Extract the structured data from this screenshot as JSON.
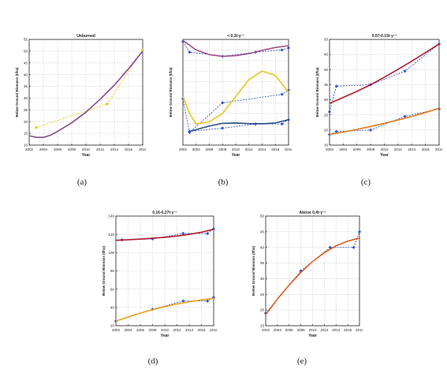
{
  "chart_data": [
    {
      "id": "a",
      "caption": "(a)",
      "type": "line",
      "title": "Unburned",
      "xlabel": "Year",
      "ylabel": "Below Ground Biomass (t/ha)",
      "xlim": [
        2002,
        2018
      ],
      "ylim": [
        10,
        55
      ],
      "xticks": [
        "2002",
        "2004",
        "2006",
        "2008",
        "2010",
        "2012",
        "2014",
        "2016",
        "2018"
      ],
      "yticks": [
        "10",
        "15",
        "20",
        "25",
        "30",
        "35",
        "40",
        "45",
        "50",
        "55"
      ],
      "grid": true,
      "series": [
        {
          "style": "dashed-markers",
          "color": "#e8c51f",
          "x": [
            2003,
            2013,
            2018
          ],
          "y": [
            17.5,
            27.5,
            50.5
          ]
        },
        {
          "style": "fit",
          "color": "#8a4a8a",
          "x": [
            2002,
            2003,
            2004,
            2005,
            2006,
            2008,
            2010,
            2012,
            2014,
            2016,
            2018
          ],
          "y": [
            14,
            13.3,
            13.3,
            14.2,
            15.8,
            19.5,
            24,
            29.5,
            35.5,
            42.5,
            50
          ]
        }
      ]
    },
    {
      "id": "b",
      "caption": "(b)",
      "type": "line",
      "title": "<-0.3t·y⁻¹",
      "xlabel": "Year",
      "ylabel": "Below Ground Biomass (t/ha)",
      "xlim": [
        2002,
        2018
      ],
      "ylim": [
        10,
        60
      ],
      "xticks": [
        "2002",
        "2004",
        "2006",
        "2008",
        "2010",
        "2012",
        "2014",
        "2016",
        "2018"
      ],
      "yticks": [],
      "grid": true,
      "series": [
        {
          "style": "dashed-markers",
          "color": "#3a56c8",
          "x": [
            2002,
            2003,
            2008,
            2013,
            2017,
            2018
          ],
          "y": [
            59,
            54,
            52,
            54,
            55,
            56
          ]
        },
        {
          "style": "fit",
          "color": "#a0508a",
          "x": [
            2002,
            2004,
            2006,
            2008,
            2010,
            2012,
            2014,
            2016,
            2018
          ],
          "y": [
            59.5,
            55,
            52.8,
            52,
            52.3,
            53.3,
            54.8,
            56.2,
            57
          ]
        },
        {
          "style": "dashed-markers",
          "color": "#3a56c8",
          "x": [
            2002,
            2003,
            2008,
            2017,
            2018
          ],
          "y": [
            32,
            16,
            30,
            34,
            36
          ]
        },
        {
          "style": "fit",
          "color": "#e8c51f",
          "x": [
            2002,
            2003,
            2004,
            2006,
            2008,
            2010,
            2012,
            2014,
            2016,
            2018
          ],
          "y": [
            33,
            25,
            20,
            21,
            25,
            33,
            41,
            45,
            43,
            35
          ]
        },
        {
          "style": "dashed-markers",
          "color": "#3a56c8",
          "x": [
            2003,
            2008,
            2013,
            2017,
            2018
          ],
          "y": [
            16.5,
            18,
            20,
            20,
            22
          ]
        },
        {
          "style": "fit",
          "color": "#2b4f8a",
          "x": [
            2003,
            2006,
            2008,
            2010,
            2012,
            2014,
            2016,
            2018
          ],
          "y": [
            16.5,
            19,
            20.3,
            20.5,
            20.2,
            20.1,
            20.5,
            22
          ]
        }
      ]
    },
    {
      "id": "c",
      "caption": "(c)",
      "type": "line",
      "title": "0.07-0.15t·y⁻¹",
      "xlabel": "Year",
      "ylabel": "Below Ground Biomass (t/ha)",
      "xlim": [
        2002,
        2018
      ],
      "ylim": [
        15,
        50
      ],
      "xticks": [
        "2002",
        "2004",
        "2006",
        "2008",
        "2010",
        "2012",
        "2014",
        "2016",
        "2018"
      ],
      "yticks": [
        "15",
        "20",
        "25",
        "30",
        "35",
        "40",
        "45",
        "50"
      ],
      "grid": true,
      "series": [
        {
          "style": "dashed-markers",
          "color": "#3a56c8",
          "x": [
            2002,
            2003,
            2008,
            2013,
            2018
          ],
          "y": [
            26,
            34.5,
            35,
            39.5,
            48.5
          ]
        },
        {
          "style": "fit",
          "color": "#b01c2e",
          "x": [
            2002,
            2004,
            2006,
            2008,
            2010,
            2012,
            2014,
            2016,
            2018
          ],
          "y": [
            28.8,
            30.8,
            32.8,
            35,
            37.5,
            40.1,
            42.8,
            45.6,
            48.5
          ]
        },
        {
          "style": "dashed-markers",
          "color": "#3a56c8",
          "x": [
            2002,
            2003,
            2008,
            2013,
            2018
          ],
          "y": [
            18.5,
            19.5,
            20,
            24.5,
            27
          ]
        },
        {
          "style": "fit",
          "color": "#e07a1a",
          "x": [
            2002,
            2004,
            2006,
            2008,
            2010,
            2012,
            2014,
            2016,
            2018
          ],
          "y": [
            18.5,
            19.3,
            20.2,
            21.2,
            22.2,
            23.3,
            24.5,
            25.8,
            27.2
          ]
        }
      ]
    },
    {
      "id": "d",
      "caption": "(d)",
      "type": "line",
      "title": "0.16-0.27t·y⁻¹",
      "xlabel": "Year",
      "ylabel": "Below Ground Biomass (t/ha)",
      "xlim": [
        2002,
        2018
      ],
      "ylim": [
        20,
        140
      ],
      "xticks": [
        "2002",
        "2004",
        "2006",
        "2008",
        "2010",
        "2012",
        "2014",
        "2016",
        "2018"
      ],
      "yticks": [
        "20",
        "40",
        "60",
        "80",
        "100",
        "120",
        "140"
      ],
      "grid": true,
      "series": [
        {
          "style": "dashed-markers",
          "color": "#3a56c8",
          "x": [
            2003,
            2008,
            2013,
            2017,
            2018
          ],
          "y": [
            114,
            115,
            121,
            121,
            126
          ]
        },
        {
          "style": "fit",
          "color": "#b01c2e",
          "x": [
            2002,
            2004,
            2006,
            2008,
            2010,
            2012,
            2014,
            2016,
            2018
          ],
          "y": [
            113.5,
            114,
            114.8,
            115.7,
            116.8,
            118.2,
            120,
            122.3,
            125.5
          ]
        },
        {
          "style": "dashed-markers",
          "color": "#3a56c8",
          "x": [
            2002,
            2008,
            2013,
            2017,
            2018
          ],
          "y": [
            25,
            38,
            47,
            47,
            51
          ]
        },
        {
          "style": "fit",
          "color": "#e8a01a",
          "x": [
            2002,
            2004,
            2006,
            2008,
            2010,
            2012,
            2014,
            2016,
            2018
          ],
          "y": [
            25,
            29.5,
            33.8,
            37.5,
            40.8,
            43.7,
            46.2,
            48.2,
            50
          ]
        }
      ]
    },
    {
      "id": "e",
      "caption": "(e)",
      "type": "line",
      "title": "Above 0.4t·y⁻¹",
      "xlabel": "Year",
      "ylabel": "Below Ground Biomass (t/ha)",
      "xlim": [
        2002,
        2018
      ],
      "ylim": [
        15,
        50
      ],
      "xticks": [
        "2002",
        "2004",
        "2006",
        "2008",
        "2010",
        "2012",
        "2014",
        "2016",
        "2018"
      ],
      "yticks": [
        "15",
        "20",
        "25",
        "30",
        "35",
        "40",
        "45",
        "50"
      ],
      "grid": true,
      "series": [
        {
          "style": "dashed-markers",
          "color": "#3a56c8",
          "x": [
            2002,
            2008,
            2013,
            2017,
            2018
          ],
          "y": [
            19,
            32.5,
            40,
            40,
            45
          ]
        },
        {
          "style": "fit",
          "color": "#e06020",
          "x": [
            2002,
            2004,
            2006,
            2008,
            2010,
            2012,
            2014,
            2016,
            2018
          ],
          "y": [
            18.5,
            23.5,
            28,
            32,
            35.5,
            38.3,
            40.5,
            42,
            43
          ]
        }
      ]
    }
  ]
}
